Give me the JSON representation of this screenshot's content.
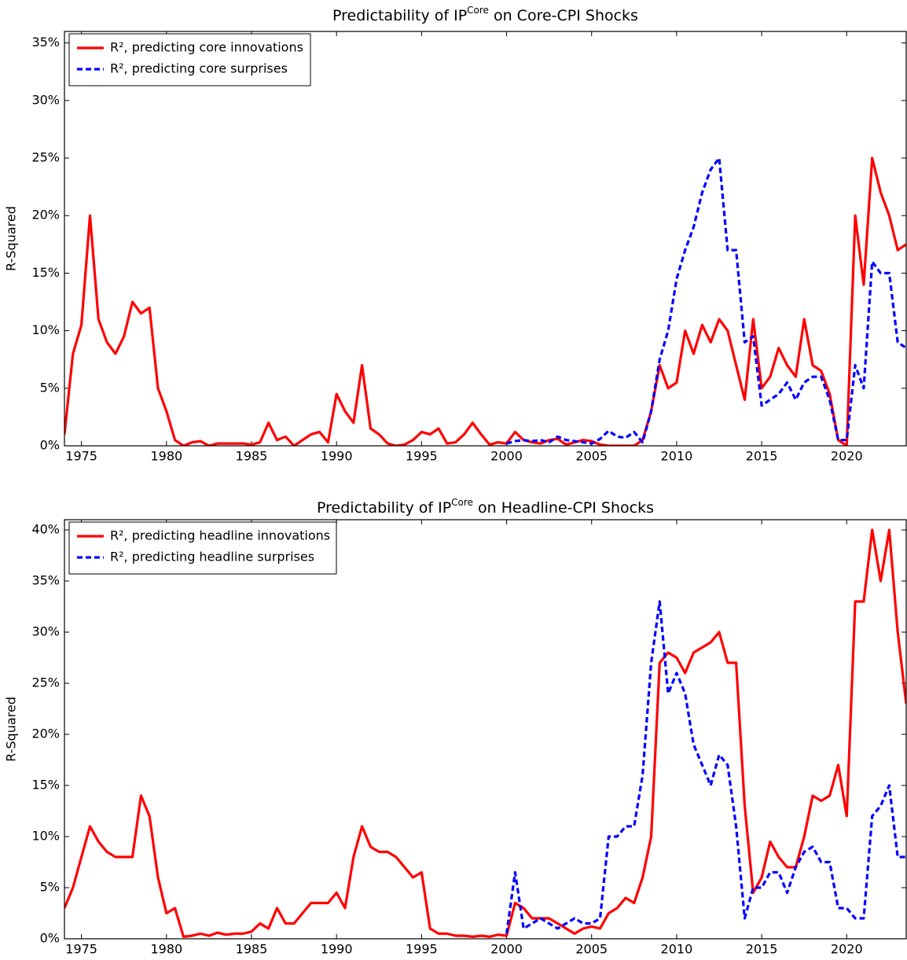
{
  "chart_data": [
    {
      "type": "line",
      "title": [
        "Predictability of IP",
        "Core",
        " on Core-CPI Shocks"
      ],
      "y_label": "R-Squared",
      "xlim": [
        1974,
        2023.5
      ],
      "xticks": [
        1975,
        1980,
        1985,
        1990,
        1995,
        2000,
        2005,
        2010,
        2015,
        2020
      ],
      "ylim": [
        0,
        36
      ],
      "yticks": [
        {
          "value": 0,
          "label": "0%"
        },
        {
          "value": 5,
          "label": "5%"
        },
        {
          "value": 10,
          "label": "10%"
        },
        {
          "value": 15,
          "label": "15%"
        },
        {
          "value": 20,
          "label": "20%"
        },
        {
          "value": 25,
          "label": "25%"
        },
        {
          "value": 30,
          "label": "30%"
        },
        {
          "value": 35,
          "label": "35%"
        }
      ],
      "legend": "upper left",
      "x": [
        1974,
        1974.5,
        1975,
        1975.5,
        1976,
        1976.5,
        1977,
        1977.5,
        1978,
        1978.5,
        1979,
        1979.5,
        1980,
        1980.5,
        1981,
        1981.5,
        1982,
        1982.5,
        1983,
        1983.5,
        1984,
        1984.5,
        1985,
        1985.5,
        1986,
        1986.5,
        1987,
        1987.5,
        1988,
        1988.5,
        1989,
        1989.5,
        1990,
        1990.5,
        1991,
        1991.5,
        1992,
        1992.5,
        1993,
        1993.5,
        1994,
        1994.5,
        1995,
        1995.5,
        1996,
        1996.5,
        1997,
        1997.5,
        1998,
        1998.5,
        1999,
        1999.5,
        2000,
        2000.5,
        2001,
        2001.5,
        2002,
        2002.5,
        2003,
        2003.5,
        2004,
        2004.5,
        2005,
        2005.5,
        2006,
        2006.5,
        2007,
        2007.5,
        2008,
        2008.5,
        2009,
        2009.5,
        2010,
        2010.5,
        2011,
        2011.5,
        2012,
        2012.5,
        2013,
        2013.5,
        2014,
        2014.5,
        2015,
        2015.5,
        2016,
        2016.5,
        2017,
        2017.5,
        2018,
        2018.5,
        2019,
        2019.5,
        2020,
        2020.5,
        2021,
        2021.5,
        2022,
        2022.5,
        2023,
        2023.5
      ],
      "series": [
        {
          "name": "R², predicting core innovations",
          "color": "#ff0000",
          "dash": false,
          "values": [
            1,
            8,
            10.5,
            20,
            11,
            9,
            8,
            9.5,
            12.5,
            11.5,
            12,
            5,
            3,
            0.5,
            0,
            0.3,
            0.4,
            0,
            0.2,
            0.2,
            0.2,
            0.2,
            0.1,
            0.3,
            2,
            0.5,
            0.8,
            0,
            0.5,
            1,
            1.2,
            0.3,
            4.5,
            3,
            2,
            7,
            1.5,
            1,
            0.2,
            0,
            0.1,
            0.5,
            1.2,
            1,
            1.5,
            0.2,
            0.3,
            1,
            2,
            1,
            0.1,
            0.3,
            0.2,
            1.2,
            0.5,
            0.3,
            0.2,
            0.5,
            0.6,
            0.1,
            0.3,
            0.5,
            0.4,
            0.1,
            0,
            0,
            0,
            0,
            0.5,
            3,
            7,
            5,
            5.5,
            10,
            8,
            10.5,
            9,
            11,
            10,
            7,
            4,
            11,
            5,
            6,
            8.5,
            7,
            6,
            11,
            7,
            6.5,
            4.5,
            0.5,
            0,
            20,
            14,
            25,
            22,
            20,
            17,
            17.5
          ]
        },
        {
          "name": "R², predicting core surprises",
          "color": "#0000ff",
          "dash": true,
          "values": [
            null,
            null,
            null,
            null,
            null,
            null,
            null,
            null,
            null,
            null,
            null,
            null,
            null,
            null,
            null,
            null,
            null,
            null,
            null,
            null,
            null,
            null,
            null,
            null,
            null,
            null,
            null,
            null,
            null,
            null,
            null,
            null,
            null,
            null,
            null,
            null,
            null,
            null,
            null,
            null,
            null,
            null,
            null,
            null,
            null,
            null,
            null,
            null,
            null,
            null,
            null,
            null,
            0.2,
            0.4,
            0.5,
            0.4,
            0.5,
            0.3,
            0.8,
            0.5,
            0.4,
            0.3,
            0.2,
            0.6,
            1.3,
            0.8,
            0.7,
            1.2,
            0.3,
            3,
            7.5,
            10,
            14.5,
            17,
            19,
            22,
            24,
            25,
            17,
            17,
            9,
            9.5,
            3.5,
            4,
            4.5,
            5.5,
            4,
            5.5,
            6,
            6,
            4,
            0.5,
            0.5,
            7,
            5,
            16,
            15,
            15,
            9,
            8.5
          ]
        }
      ]
    },
    {
      "type": "line",
      "title": [
        "Predictability of IP",
        "Core",
        " on Headline-CPI Shocks"
      ],
      "y_label": "R-Squared",
      "xlim": [
        1974,
        2023.5
      ],
      "xticks": [
        1975,
        1980,
        1985,
        1990,
        1995,
        2000,
        2005,
        2010,
        2015,
        2020
      ],
      "ylim": [
        0,
        41
      ],
      "yticks": [
        {
          "value": 0,
          "label": "0%"
        },
        {
          "value": 5,
          "label": "5%"
        },
        {
          "value": 10,
          "label": "10%"
        },
        {
          "value": 15,
          "label": "15%"
        },
        {
          "value": 20,
          "label": "20%"
        },
        {
          "value": 25,
          "label": "25%"
        },
        {
          "value": 30,
          "label": "30%"
        },
        {
          "value": 35,
          "label": "35%"
        },
        {
          "value": 40,
          "label": "40%"
        }
      ],
      "legend": "upper left",
      "x": [
        1974,
        1974.5,
        1975,
        1975.5,
        1976,
        1976.5,
        1977,
        1977.5,
        1978,
        1978.5,
        1979,
        1979.5,
        1980,
        1980.5,
        1981,
        1981.5,
        1982,
        1982.5,
        1983,
        1983.5,
        1984,
        1984.5,
        1985,
        1985.5,
        1986,
        1986.5,
        1987,
        1987.5,
        1988,
        1988.5,
        1989,
        1989.5,
        1990,
        1990.5,
        1991,
        1991.5,
        1992,
        1992.5,
        1993,
        1993.5,
        1994,
        1994.5,
        1995,
        1995.5,
        1996,
        1996.5,
        1997,
        1997.5,
        1998,
        1998.5,
        1999,
        1999.5,
        2000,
        2000.5,
        2001,
        2001.5,
        2002,
        2002.5,
        2003,
        2003.5,
        2004,
        2004.5,
        2005,
        2005.5,
        2006,
        2006.5,
        2007,
        2007.5,
        2008,
        2008.5,
        2009,
        2009.5,
        2010,
        2010.5,
        2011,
        2011.5,
        2012,
        2012.5,
        2013,
        2013.5,
        2014,
        2014.5,
        2015,
        2015.5,
        2016,
        2016.5,
        2017,
        2017.5,
        2018,
        2018.5,
        2019,
        2019.5,
        2020,
        2020.5,
        2021,
        2021.5,
        2022,
        2022.5,
        2023,
        2023.5
      ],
      "series": [
        {
          "name": "R², predicting headline innovations",
          "color": "#ff0000",
          "dash": false,
          "values": [
            3,
            5,
            8,
            11,
            9.5,
            8.5,
            8,
            8,
            8,
            14,
            12,
            6,
            2.5,
            3,
            0.2,
            0.3,
            0.5,
            0.3,
            0.6,
            0.4,
            0.5,
            0.5,
            0.7,
            1.5,
            1,
            3,
            1.5,
            1.5,
            2.5,
            3.5,
            3.5,
            3.5,
            4.5,
            3,
            8,
            11,
            9,
            8.5,
            8.5,
            8,
            7,
            6,
            6.5,
            1,
            0.5,
            0.5,
            0.3,
            0.3,
            0.2,
            0.3,
            0.2,
            0.4,
            0.3,
            3.5,
            3,
            2,
            2,
            2,
            1.5,
            1,
            0.5,
            1,
            1.2,
            1,
            2.5,
            3,
            4,
            3.5,
            6,
            10,
            27,
            28,
            27.5,
            26,
            28,
            28.5,
            29,
            30,
            27,
            27,
            13,
            4.5,
            6,
            9.5,
            8,
            7,
            7,
            10,
            14,
            13.5,
            14,
            17,
            12,
            33,
            33,
            40,
            35,
            40,
            30,
            23
          ]
        },
        {
          "name": "R², predicting headline surprises",
          "color": "#0000ff",
          "dash": true,
          "values": [
            null,
            null,
            null,
            null,
            null,
            null,
            null,
            null,
            null,
            null,
            null,
            null,
            null,
            null,
            null,
            null,
            null,
            null,
            null,
            null,
            null,
            null,
            null,
            null,
            null,
            null,
            null,
            null,
            null,
            null,
            null,
            null,
            null,
            null,
            null,
            null,
            null,
            null,
            null,
            null,
            null,
            null,
            null,
            null,
            null,
            null,
            null,
            null,
            null,
            null,
            null,
            null,
            0.5,
            6.5,
            1,
            1.5,
            2,
            1.5,
            1,
            1.5,
            2,
            1.5,
            1.5,
            2,
            10,
            10,
            11,
            11,
            16,
            27,
            33,
            24,
            26,
            24,
            19,
            17,
            15,
            18,
            17,
            11,
            2,
            5,
            5,
            6.5,
            6.5,
            4.5,
            7,
            8.5,
            9,
            7.5,
            7.5,
            3,
            3,
            2,
            2,
            12,
            13,
            15,
            8,
            8
          ]
        }
      ]
    }
  ]
}
